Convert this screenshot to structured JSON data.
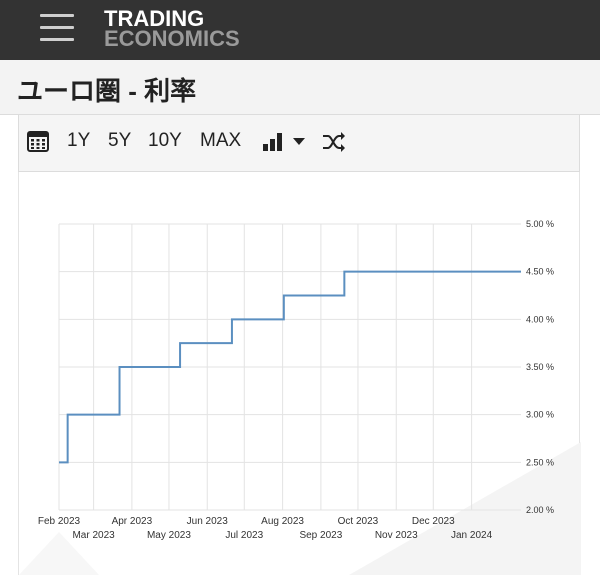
{
  "header": {
    "logo_line1": "TRADING",
    "logo_line2": "ECONOMICS",
    "menu_icon": "hamburger-menu-icon"
  },
  "page": {
    "title": "ユーロ圏 - 利率"
  },
  "toolbar": {
    "calendar_icon": "calendar-icon",
    "ranges": [
      "1Y",
      "5Y",
      "10Y",
      "MAX"
    ],
    "chart_type_icon": "bar-chart-icon",
    "dropdown_icon": "caret-down-icon",
    "shuffle_icon": "shuffle-icon"
  },
  "colors": {
    "topbar": "#333333",
    "line": "#5b8fc0",
    "grid": "#e3e3e3"
  },
  "chart_data": {
    "type": "line",
    "title": "",
    "xlabel": "",
    "ylabel": "",
    "x_tick_labels": [
      "Feb 2023",
      "Mar 2023",
      "Apr 2023",
      "May 2023",
      "Jun 2023",
      "Jul 2023",
      "Aug 2023",
      "Sep 2023",
      "Oct 2023",
      "Nov 2023",
      "Dec 2023",
      "Jan 2024"
    ],
    "y_tick_labels": [
      "2.00 %",
      "2.50 %",
      "3.00 %",
      "3.50 %",
      "4.00 %",
      "4.50 %",
      "5.00 %"
    ],
    "ylim": [
      2.0,
      5.0
    ],
    "xlim": [
      "2023-02-01",
      "2024-02-10"
    ],
    "y_axis_position": "right",
    "grid": true,
    "step": true,
    "series": [
      {
        "x": [
          "2023-02-01",
          "2023-02-08",
          "2023-03-22",
          "2023-05-10",
          "2023-06-21",
          "2023-08-02",
          "2023-09-20",
          "2024-02-10"
        ],
        "values": [
          2.5,
          3.0,
          3.5,
          3.75,
          4.0,
          4.25,
          4.5,
          4.5
        ]
      }
    ]
  }
}
